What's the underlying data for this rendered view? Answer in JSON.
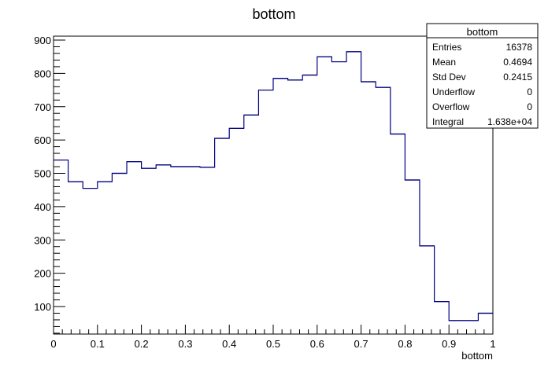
{
  "chart_data": {
    "type": "bar",
    "title": "bottom",
    "xlabel": "bottom",
    "ylabel": "",
    "xlim": [
      0,
      1
    ],
    "ylim": [
      0,
      1000
    ],
    "x_ticks": [
      "0",
      "0.1",
      "0.2",
      "0.3",
      "0.4",
      "0.5",
      "0.6",
      "0.7",
      "0.8",
      "0.9",
      "1"
    ],
    "y_ticks": [
      "100",
      "200",
      "300",
      "400",
      "500",
      "600",
      "700",
      "800",
      "900"
    ],
    "bin_edges": [
      0,
      0.0333,
      0.0667,
      0.1,
      0.1333,
      0.1667,
      0.2,
      0.2333,
      0.2667,
      0.3,
      0.3333,
      0.3667,
      0.4,
      0.4333,
      0.4667,
      0.5,
      0.5333,
      0.5667,
      0.6,
      0.6333,
      0.6667,
      0.7,
      0.7333,
      0.7667,
      0.8,
      0.8333,
      0.8667,
      0.9,
      0.9333,
      0.9667,
      1
    ],
    "values": [
      540,
      475,
      455,
      475,
      500,
      535,
      515,
      525,
      520,
      520,
      518,
      605,
      635,
      675,
      750,
      785,
      780,
      795,
      850,
      835,
      865,
      775,
      758,
      618,
      480,
      282,
      115,
      58,
      58,
      80
    ],
    "line_color": "#000080",
    "grid": false,
    "stats": {
      "title": "bottom",
      "rows": [
        {
          "label": "Entries",
          "value": "16378"
        },
        {
          "label": "Mean",
          "value": "0.4694"
        },
        {
          "label": "Std Dev",
          "value": "0.2415"
        },
        {
          "label": "Underflow",
          "value": "0"
        },
        {
          "label": "Overflow",
          "value": "0"
        },
        {
          "label": "Integral",
          "value": "1.638e+04"
        }
      ]
    }
  }
}
